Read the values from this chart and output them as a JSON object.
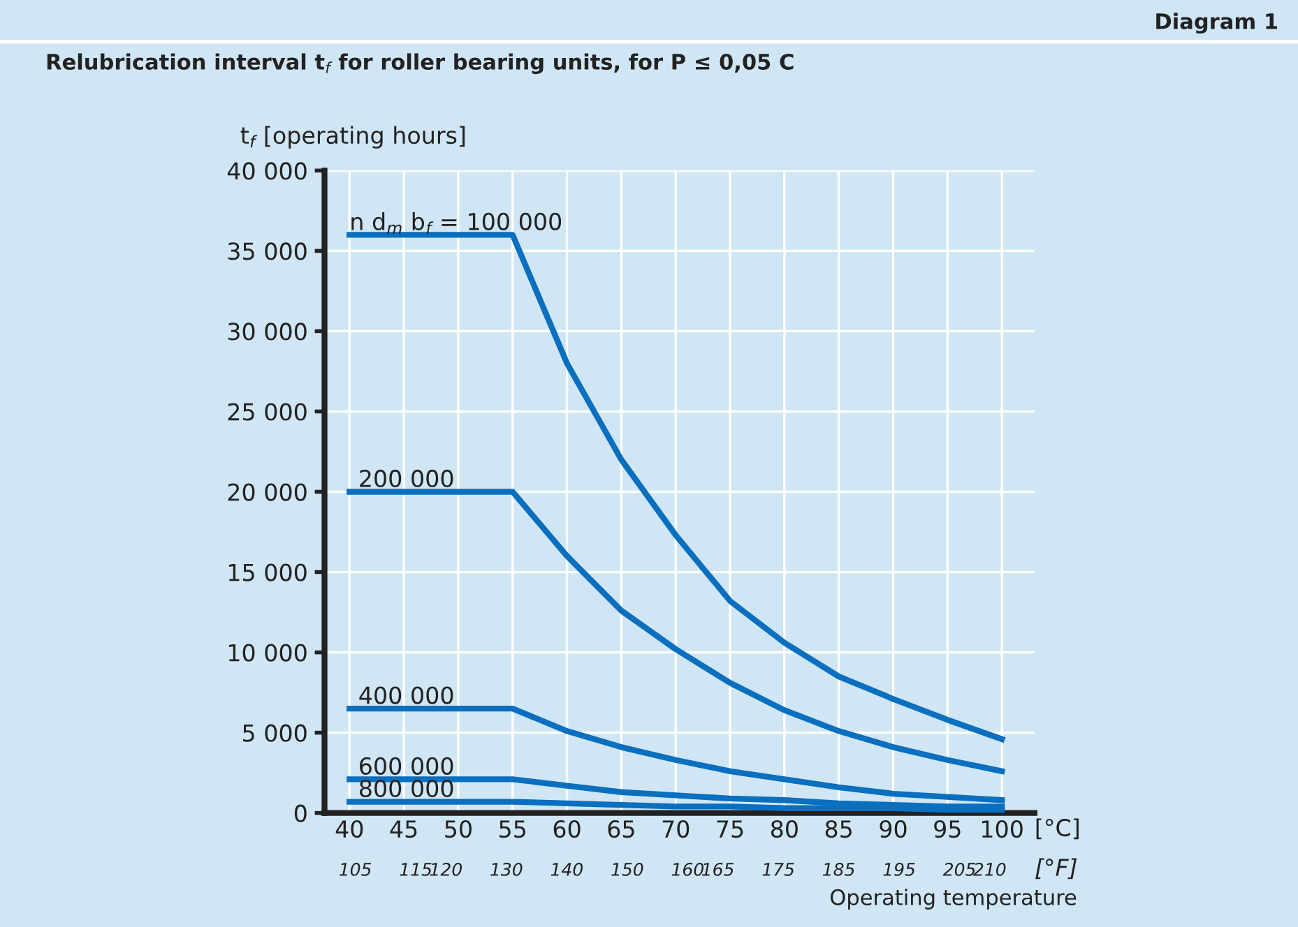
{
  "chart_data": {
    "type": "line",
    "title": "Relubrication interval t$_{f}$ for roller bearing units, for P ≤ 0,05 C",
    "xlabel": "Operating temperature",
    "ylabel": "t$_{f}$ [operating hours]",
    "annotations": [
      "Diagram 1",
      "[°C]",
      "[°F]"
    ],
    "x": [
      40,
      45,
      50,
      55,
      60,
      65,
      70,
      75,
      80,
      85,
      90,
      95,
      100
    ],
    "series": [
      {
        "name": "n d$_{m}$ b$_{f}$ = 100 000",
        "color": "#0a6fbe",
        "values": [
          36000,
          36000,
          36000,
          36000,
          28000,
          22000,
          17300,
          13200,
          10600,
          8500,
          7100,
          5800,
          4600
        ]
      },
      {
        "name": "200 000",
        "color": "#0a6fbe",
        "values": [
          20000,
          20000,
          20000,
          20000,
          16000,
          12600,
          10200,
          8100,
          6400,
          5100,
          4100,
          3300,
          2600
        ]
      },
      {
        "name": "400 000",
        "color": "#0a6fbe",
        "values": [
          6500,
          6500,
          6500,
          6500,
          5100,
          4100,
          3300,
          2600,
          2100,
          1600,
          1200,
          1000,
          800
        ]
      },
      {
        "name": "600 000",
        "color": "#0a6fbe",
        "values": [
          2100,
          2100,
          2100,
          2100,
          1700,
          1300,
          1100,
          900,
          800,
          600,
          500,
          400,
          400
        ]
      },
      {
        "name": "800 000",
        "color": "#0a6fbe",
        "values": [
          700,
          700,
          700,
          700,
          600,
          500,
          400,
          400,
          300,
          300,
          300,
          200,
          200
        ]
      }
    ],
    "xlim": [
      37.7,
      103
    ],
    "xticks": [
      40,
      45,
      50,
      55,
      60,
      65,
      70,
      75,
      80,
      85,
      90,
      95,
      100
    ],
    "x2lim": [
      99.9,
      217.4
    ],
    "x2ticks": [
      105,
      115,
      120,
      130,
      140,
      150,
      160,
      165,
      175,
      185,
      195,
      205,
      210
    ],
    "ylim": [
      0,
      40000
    ],
    "yticks": [
      {
        "value": 0,
        "label": "0"
      },
      {
        "value": 5000,
        "label": "5 000"
      },
      {
        "value": 10000,
        "label": "10 000"
      },
      {
        "value": 15000,
        "label": "15 000"
      },
      {
        "value": 20000,
        "label": "20 000"
      },
      {
        "value": 25000,
        "label": "25 000"
      },
      {
        "value": 30000,
        "label": "30 000"
      },
      {
        "value": 35000,
        "label": "35 000"
      },
      {
        "value": 40000,
        "label": "40 000"
      }
    ],
    "grid": true,
    "legend": false,
    "marker": "none",
    "line_style": "solid"
  }
}
